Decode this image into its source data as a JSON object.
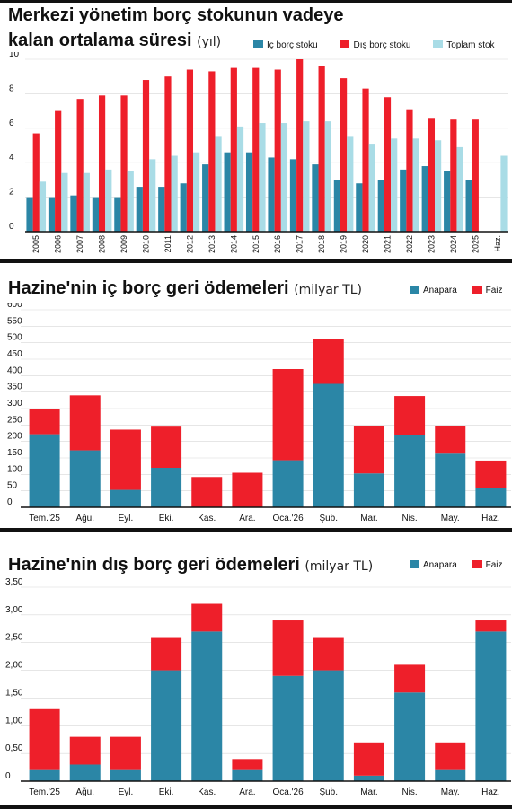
{
  "colors": {
    "ic": "#2b86a6",
    "dis": "#ee1f2a",
    "toplam": "#a9dce6",
    "axis": "#111111",
    "grid": "#d8d8d8"
  },
  "chart1": {
    "title_line1": "Merkezi yönetim borç stokunun vadeye",
    "title_line2": "kalan ortalama süresi",
    "unit": "(yıl)",
    "legend": [
      "İç borç stoku",
      "Dış borç stoku",
      "Toplam stok"
    ]
  },
  "chart2": {
    "title": "Hazine'nin iç borç geri ödemeleri",
    "unit": "(milyar TL)",
    "legend": [
      "Anapara",
      "Faiz"
    ]
  },
  "chart3": {
    "title": "Hazine'nin dış borç geri ödemeleri",
    "unit": "(milyar TL)",
    "legend": [
      "Anapara",
      "Faiz"
    ]
  },
  "chart_data": [
    {
      "type": "bar",
      "categories": [
        "2005",
        "2006",
        "2007",
        "2008",
        "2009",
        "2010",
        "2011",
        "2012",
        "2013",
        "2014",
        "2015",
        "2016",
        "2017",
        "2018",
        "2019",
        "2020",
        "2021",
        "2022",
        "2023",
        "2024",
        "2025",
        "Haz."
      ],
      "series": [
        {
          "name": "İç borç stoku",
          "values": [
            2.0,
            2.0,
            2.1,
            2.0,
            2.0,
            2.6,
            2.6,
            2.8,
            3.9,
            4.6,
            4.6,
            4.3,
            4.2,
            3.9,
            3.0,
            2.8,
            3.0,
            3.6,
            3.8,
            3.5,
            3.0,
            null
          ]
        },
        {
          "name": "Dış borç stoku",
          "values": [
            5.7,
            7.0,
            7.7,
            7.9,
            7.9,
            8.8,
            9.0,
            9.4,
            9.3,
            9.5,
            9.5,
            9.4,
            10.0,
            9.6,
            8.9,
            8.3,
            7.8,
            7.1,
            6.6,
            6.5,
            6.5,
            null
          ]
        },
        {
          "name": "Toplam stok",
          "values": [
            2.9,
            3.4,
            3.4,
            3.6,
            3.5,
            4.2,
            4.4,
            4.6,
            5.5,
            6.1,
            6.3,
            6.3,
            6.4,
            6.4,
            5.5,
            5.1,
            5.4,
            5.4,
            5.3,
            4.9,
            null,
            4.4
          ]
        }
      ],
      "y_ticks": [
        "0",
        "2",
        "4",
        "6",
        "8",
        "10"
      ],
      "ylim": [
        0,
        10
      ]
    },
    {
      "type": "bar",
      "stacked": true,
      "categories": [
        "Tem.'25",
        "Ağu.",
        "Eyl.",
        "Eki.",
        "Kas.",
        "Ara.",
        "Oca.'26",
        "Şub.",
        "Mar.",
        "Nis.",
        "May.",
        "Haz."
      ],
      "series": [
        {
          "name": "Anapara",
          "values": [
            222,
            173,
            53,
            120,
            0,
            0,
            143,
            375,
            103,
            220,
            163,
            60
          ]
        },
        {
          "name": "Faiz",
          "values": [
            78,
            167,
            183,
            125,
            92,
            105,
            277,
            135,
            145,
            118,
            83,
            82
          ]
        }
      ],
      "y_ticks": [
        "0",
        "50",
        "100",
        "150",
        "200",
        "250",
        "300",
        "350",
        "400",
        "450",
        "500",
        "550",
        "600"
      ],
      "ylim": [
        0,
        600
      ]
    },
    {
      "type": "bar",
      "stacked": true,
      "categories": [
        "Tem.'25",
        "Ağu.",
        "Eyl.",
        "Eki.",
        "Kas.",
        "Ara.",
        "Oca.'26",
        "Şub.",
        "Mar.",
        "Nis.",
        "May.",
        "Haz."
      ],
      "series": [
        {
          "name": "Anapara",
          "values": [
            0.2,
            0.3,
            0.2,
            2.0,
            2.7,
            0.2,
            1.9,
            2.0,
            0.1,
            1.6,
            0.2,
            2.7
          ]
        },
        {
          "name": "Faiz",
          "values": [
            1.1,
            0.5,
            0.6,
            0.6,
            0.5,
            0.2,
            1.0,
            0.6,
            0.6,
            0.5,
            0.5,
            0.2
          ]
        }
      ],
      "y_ticks": [
        "0",
        "0,50",
        "1,00",
        "1,50",
        "2,00",
        "2,50",
        "3,00",
        "3,50"
      ],
      "ylim": [
        0,
        3.5
      ]
    }
  ]
}
